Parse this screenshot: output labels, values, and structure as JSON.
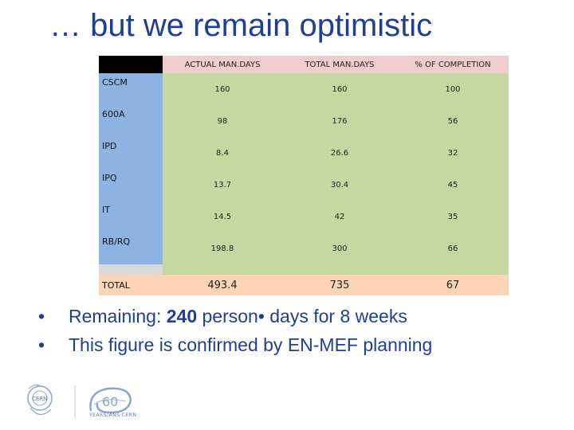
{
  "slide": {
    "title": "… but we remain optimistic"
  },
  "table": {
    "headers": [
      "",
      "ACTUAL MAN.DAYS",
      "TOTAL MAN.DAYS",
      "% OF COMPLETION"
    ],
    "rows": [
      {
        "label": "CSCM",
        "actual": "160",
        "total": "160",
        "completion": "100"
      },
      {
        "label": "600A",
        "actual": "98",
        "total": "176",
        "completion": "56"
      },
      {
        "label": "IPD",
        "actual": "8.4",
        "total": "26.6",
        "completion": "32"
      },
      {
        "label": "IPQ",
        "actual": "13.7",
        "total": "30.4",
        "completion": "45"
      },
      {
        "label": "IT",
        "actual": "14.5",
        "total": "42",
        "completion": "35"
      },
      {
        "label": "RB/RQ",
        "actual": "198.8",
        "total": "300",
        "completion": "66"
      }
    ],
    "total_row": {
      "label": "TOTAL",
      "actual": "493.4",
      "total": "735",
      "completion": "67"
    }
  },
  "bullets": [
    {
      "bullet": "•",
      "prefix": "Remaining: ",
      "bold": "240",
      "suffix": " person• days for 8 weeks"
    },
    {
      "bullet": "•",
      "text": "This figure is confirmed by EN-MEF planning"
    }
  ],
  "footer": {
    "cern_logo_text": "CERN",
    "anniversary_number": "60",
    "anniversary_caption": "YEARS/ANS CERN"
  },
  "colors": {
    "title": "#1f3f94",
    "header_bg": "#f0cccc",
    "label_bg": "#8db3e2",
    "cell_bg": "#c5d8a0",
    "total_bg": "#fbd5b5"
  }
}
